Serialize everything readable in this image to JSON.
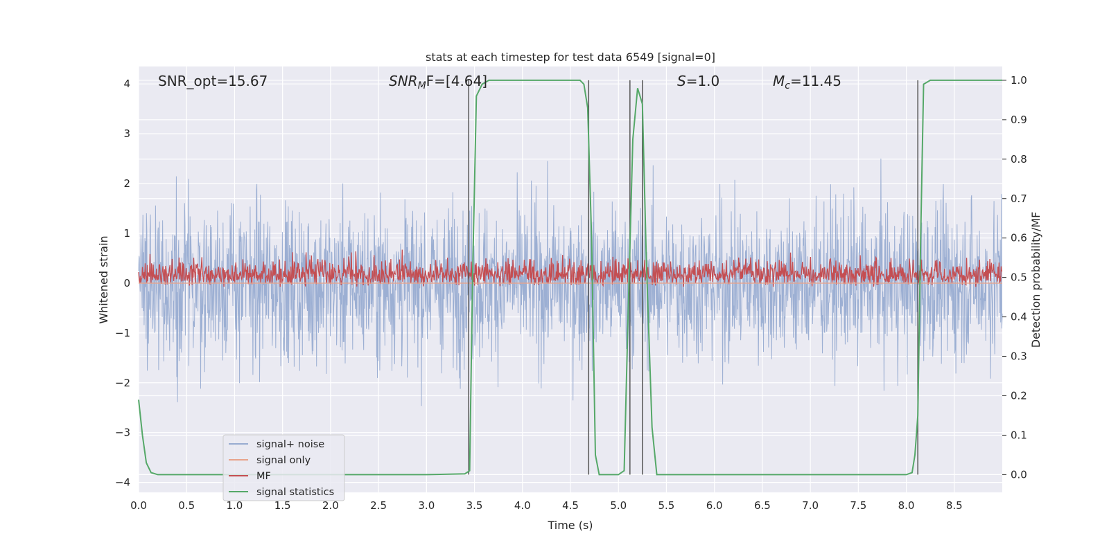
{
  "chart_data": {
    "type": "line",
    "title": "stats at each timestep for test data 6549 [signal=0]",
    "xlabel": "Time (s)",
    "ylabel_left": "Whitened strain",
    "ylabel_right": "Detection probability/MF",
    "xlim": [
      0,
      9.0
    ],
    "ylim_left": [
      -4.2,
      4.35
    ],
    "ylim_right": [
      -0.045,
      1.035
    ],
    "x_ticks": [
      "0.0",
      "0.5",
      "1.0",
      "1.5",
      "2.0",
      "2.5",
      "3.0",
      "3.5",
      "4.0",
      "4.5",
      "5.0",
      "5.5",
      "6.0",
      "6.5",
      "7.0",
      "7.5",
      "8.0",
      "8.5"
    ],
    "y_ticks_left": [
      "−4",
      "−3",
      "−2",
      "−1",
      "0",
      "1",
      "2",
      "3",
      "4"
    ],
    "y_ticks_right": [
      "0.0",
      "0.1",
      "0.2",
      "0.3",
      "0.4",
      "0.5",
      "0.6",
      "0.7",
      "0.8",
      "0.9",
      "1.0"
    ],
    "grid": true,
    "legend_position": "lower-left",
    "annotations": {
      "snr_opt": "SNR_opt=15.67",
      "snr_mf": {
        "italic": "SNR",
        "sub": "M",
        "tail": "F=[4.64]"
      },
      "s": {
        "italic": "S",
        "tail": "=1.0"
      },
      "mc": {
        "italic": "M",
        "sub": "c",
        "tail": "=11.45"
      }
    },
    "vertical_lines_x": [
      3.44,
      4.69,
      5.12,
      5.25,
      8.12
    ],
    "series": [
      {
        "name": "signal+ noise",
        "color": "#98acd1",
        "axis": "left",
        "noise_amplitude": 1.1,
        "peak_max": 4.0,
        "peak_min": -3.6
      },
      {
        "name": "signal only",
        "color": "#e8a38b",
        "axis": "left",
        "values_constant": 0
      },
      {
        "name": "MF",
        "color": "#c44e52",
        "axis": "right",
        "baseline": 0.49,
        "range": [
          0.45,
          0.6
        ]
      },
      {
        "name": "signal statistics",
        "color": "#55a868",
        "axis": "right",
        "x": [
          0.0,
          0.04,
          0.08,
          0.13,
          0.2,
          0.3,
          1.0,
          2.0,
          3.0,
          3.4,
          3.45,
          3.48,
          3.52,
          3.58,
          3.65,
          4.0,
          4.5,
          4.6,
          4.64,
          4.68,
          4.72,
          4.76,
          4.8,
          4.85,
          5.0,
          5.06,
          5.1,
          5.15,
          5.2,
          5.25,
          5.29,
          5.35,
          5.4,
          5.6,
          6.0,
          7.0,
          8.0,
          8.06,
          8.09,
          8.12,
          8.15,
          8.18,
          8.25,
          9.0
        ],
        "values": [
          0.19,
          0.1,
          0.03,
          0.005,
          0.0,
          0.0,
          0.0,
          0.0,
          0.0,
          0.002,
          0.01,
          0.5,
          0.96,
          0.99,
          1.0,
          1.0,
          1.0,
          1.0,
          0.99,
          0.93,
          0.6,
          0.05,
          0.0,
          0.0,
          0.0,
          0.01,
          0.4,
          0.85,
          0.98,
          0.94,
          0.55,
          0.12,
          0.0,
          0.0,
          0.0,
          0.0,
          0.0,
          0.005,
          0.05,
          0.15,
          0.6,
          0.99,
          1.0,
          1.0
        ]
      }
    ]
  }
}
